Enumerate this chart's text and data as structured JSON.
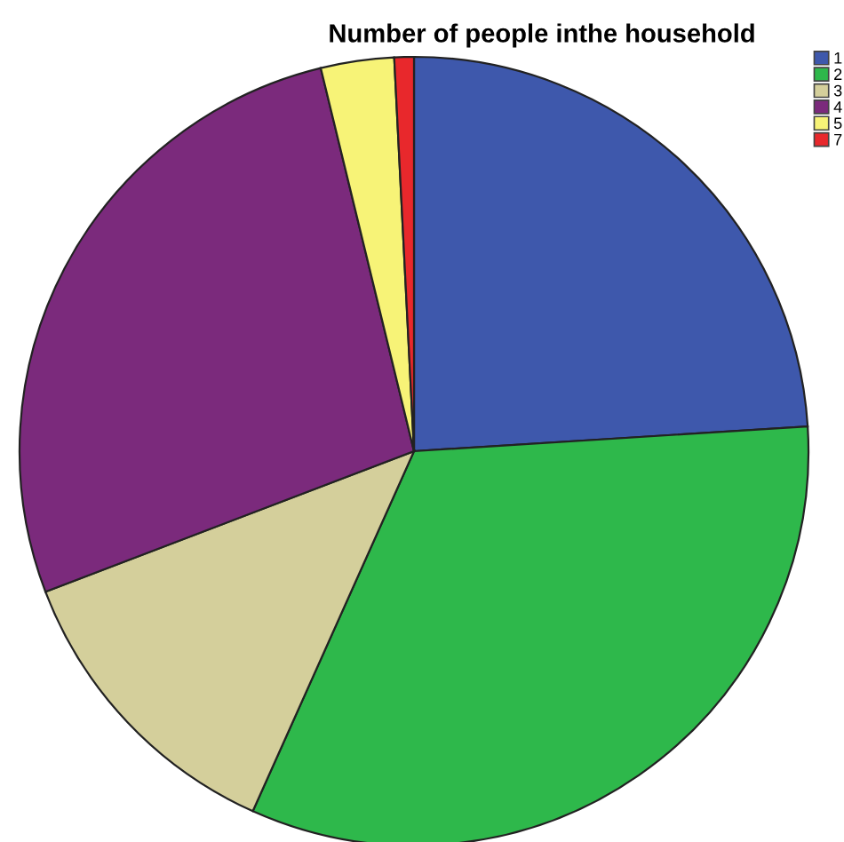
{
  "chart_data": {
    "type": "pie",
    "title": "Number of people inthe household",
    "categories": [
      "1",
      "2",
      "3",
      "4",
      "5",
      "7"
    ],
    "values": [
      24,
      32.7,
      12.5,
      27,
      3,
      0.8
    ],
    "colors": [
      "#3e58ac",
      "#2eb84b",
      "#d4cf9b",
      "#7b2a7c",
      "#f7f377",
      "#e8282c"
    ],
    "legend": "top right"
  }
}
